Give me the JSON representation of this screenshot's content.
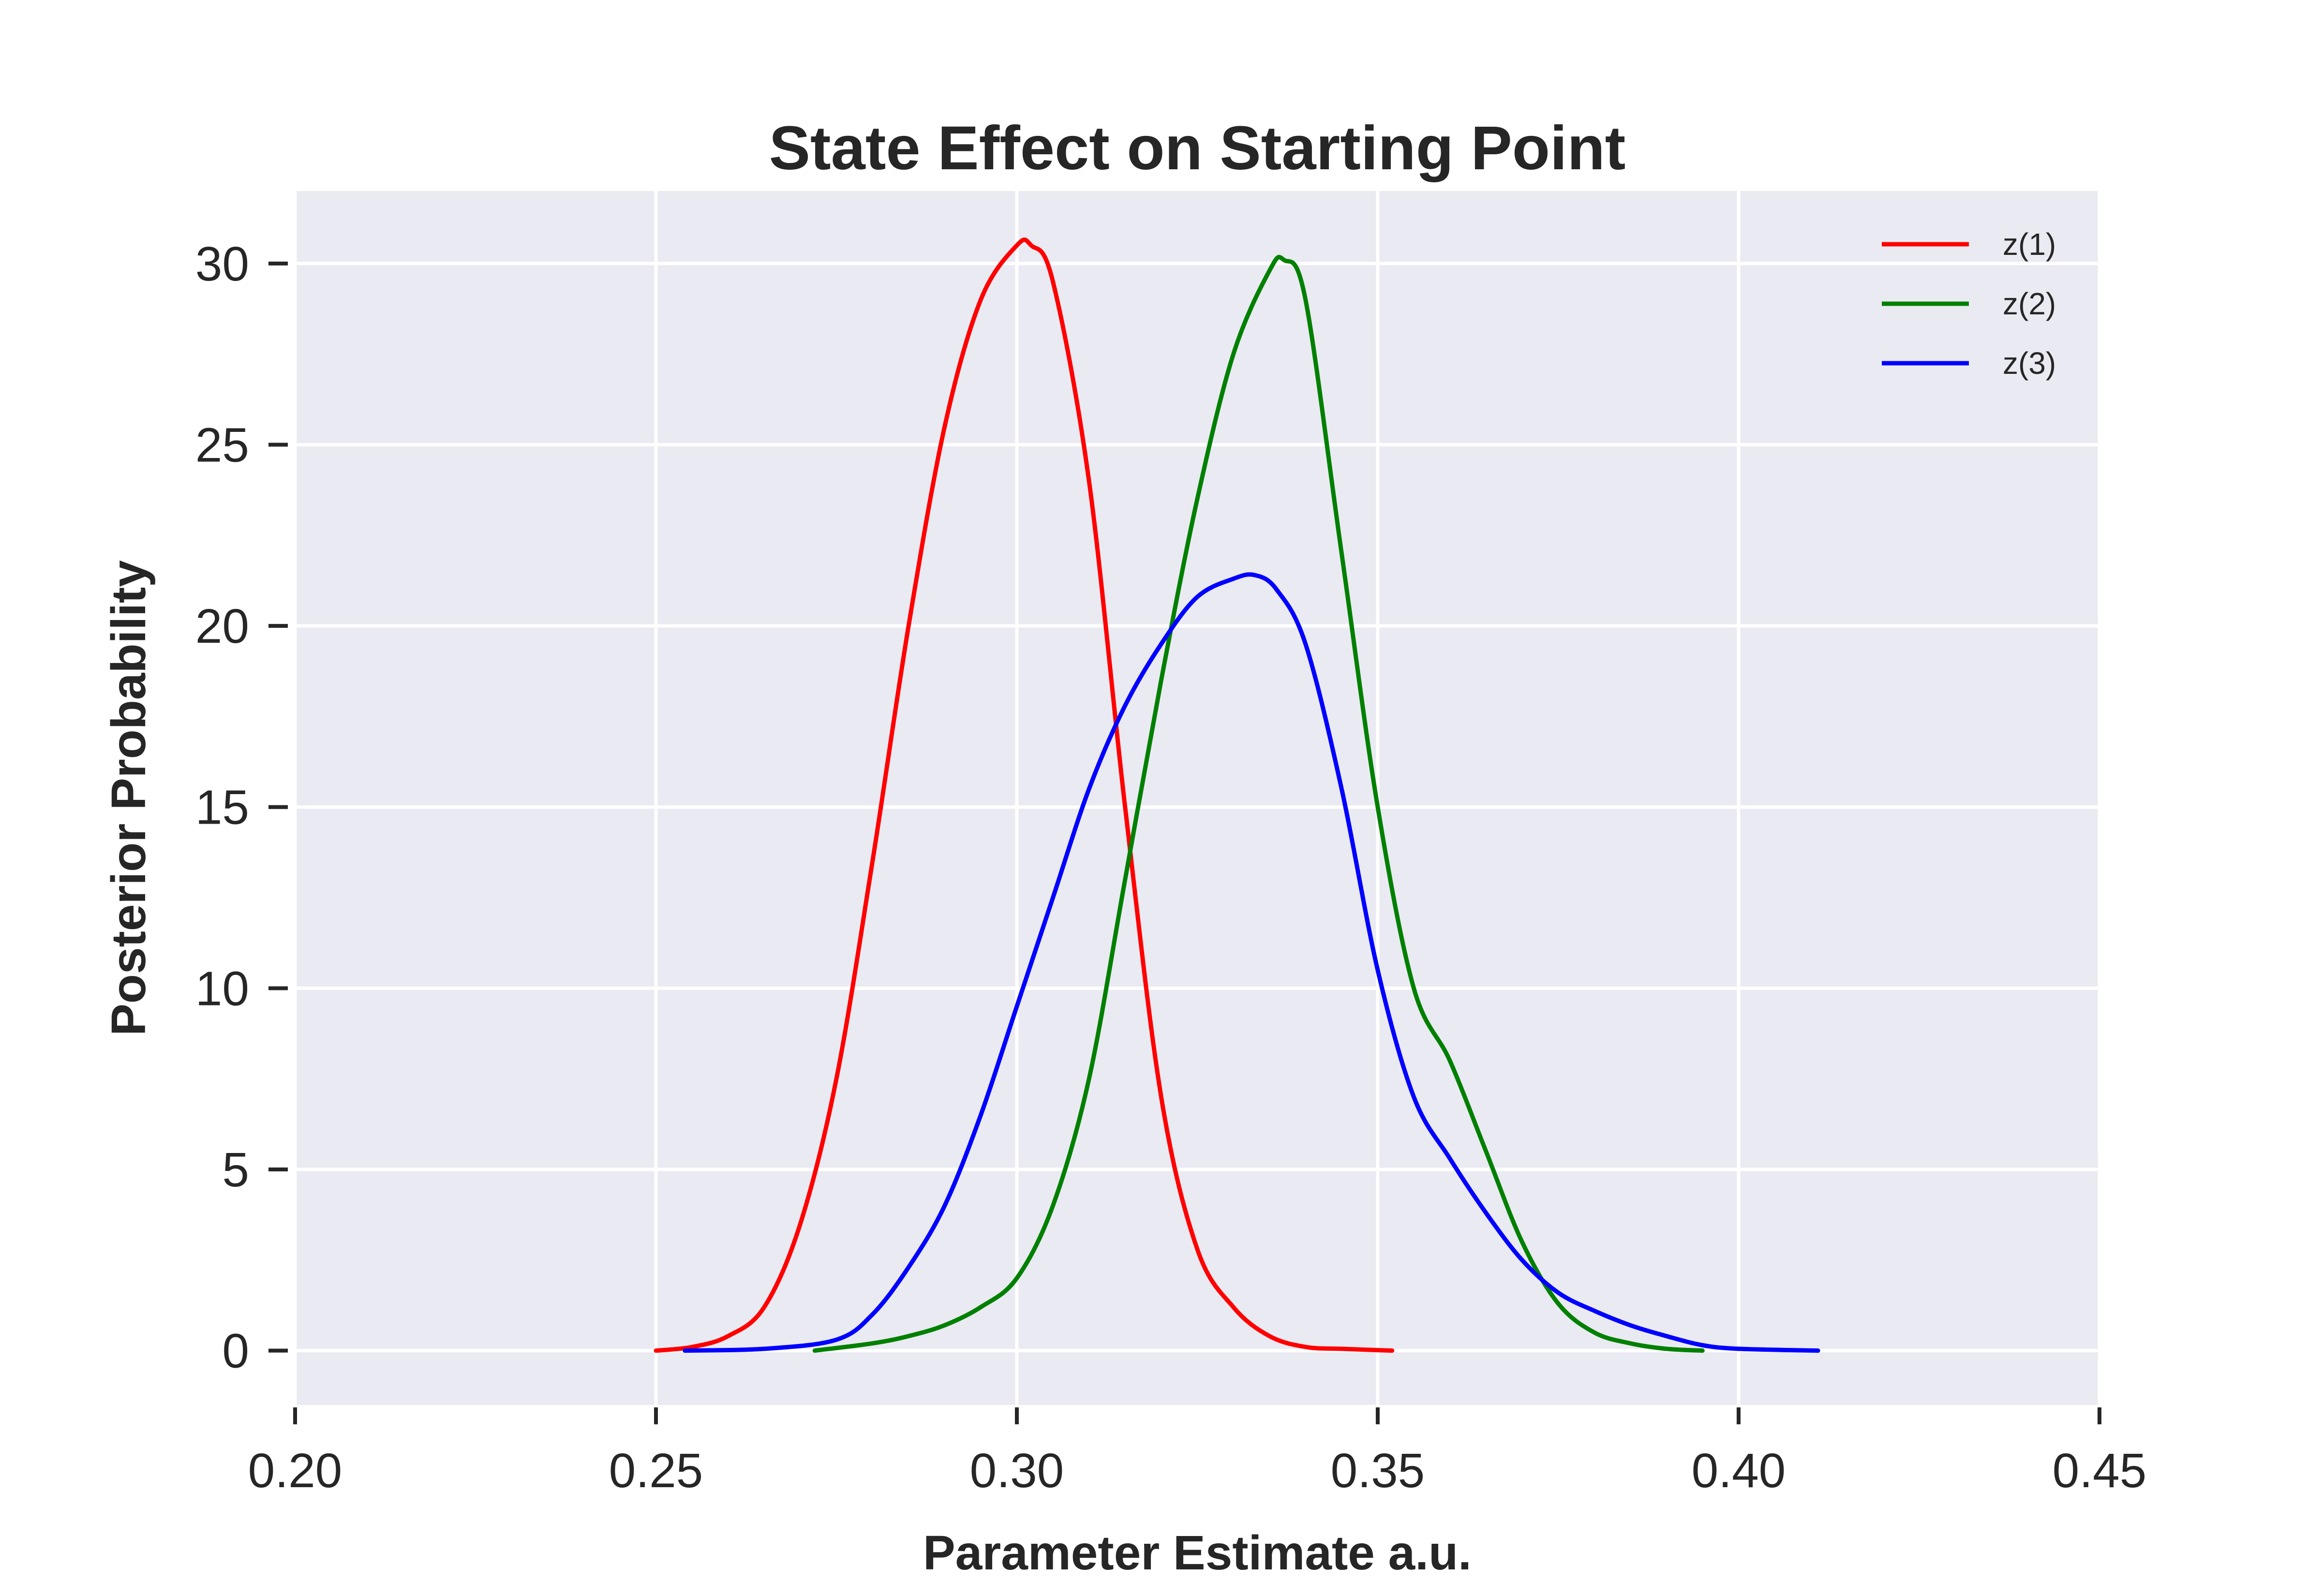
{
  "chart_data": {
    "type": "line",
    "title": "State Effect on Starting Point",
    "xlabel": "Parameter Estimate a.u.",
    "ylabel": "Posterior Probability",
    "xlim": [
      0.2,
      0.45
    ],
    "ylim": [
      -1.5,
      32
    ],
    "xticks": [
      0.2,
      0.25,
      0.3,
      0.35,
      0.4,
      0.45
    ],
    "xtick_labels": [
      "0.20",
      "0.25",
      "0.30",
      "0.35",
      "0.40",
      "0.45"
    ],
    "yticks": [
      0,
      5,
      10,
      15,
      20,
      25,
      30
    ],
    "ytick_labels": [
      "0",
      "5",
      "10",
      "15",
      "20",
      "25",
      "30"
    ],
    "grid": true,
    "legend_position": "top-right",
    "background": "#eaeaf2",
    "series": [
      {
        "name": "z(1)",
        "color": "#ff0000",
        "x": [
          0.25,
          0.255,
          0.26,
          0.265,
          0.27,
          0.275,
          0.28,
          0.285,
          0.29,
          0.295,
          0.3,
          0.302,
          0.305,
          0.31,
          0.315,
          0.32,
          0.325,
          0.33,
          0.335,
          0.34,
          0.345,
          0.352
        ],
        "y": [
          0.0,
          0.1,
          0.4,
          1.2,
          3.5,
          7.5,
          13.5,
          20.0,
          25.5,
          29.0,
          30.5,
          30.5,
          29.5,
          24.0,
          15.0,
          7.0,
          2.8,
          1.2,
          0.4,
          0.1,
          0.05,
          0.0
        ]
      },
      {
        "name": "z(2)",
        "color": "#008000",
        "x": [
          0.272,
          0.28,
          0.285,
          0.29,
          0.295,
          0.3,
          0.305,
          0.31,
          0.315,
          0.32,
          0.325,
          0.33,
          0.335,
          0.337,
          0.34,
          0.345,
          0.35,
          0.355,
          0.36,
          0.365,
          0.37,
          0.375,
          0.38,
          0.385,
          0.39,
          0.395
        ],
        "y": [
          0.0,
          0.2,
          0.4,
          0.7,
          1.2,
          2.0,
          4.0,
          7.5,
          13.0,
          18.5,
          23.5,
          27.5,
          29.8,
          30.1,
          29.0,
          22.0,
          15.0,
          10.0,
          8.0,
          5.5,
          3.0,
          1.3,
          0.5,
          0.2,
          0.05,
          0.0
        ]
      },
      {
        "name": "z(3)",
        "color": "#0000ff",
        "x": [
          0.254,
          0.265,
          0.275,
          0.28,
          0.285,
          0.29,
          0.295,
          0.3,
          0.305,
          0.31,
          0.315,
          0.32,
          0.325,
          0.33,
          0.333,
          0.336,
          0.34,
          0.345,
          0.35,
          0.355,
          0.36,
          0.365,
          0.37,
          0.375,
          0.38,
          0.385,
          0.39,
          0.395,
          0.4,
          0.411
        ],
        "y": [
          0.0,
          0.05,
          0.3,
          1.0,
          2.3,
          4.0,
          6.5,
          9.5,
          12.5,
          15.5,
          17.8,
          19.5,
          20.8,
          21.3,
          21.4,
          21.0,
          19.5,
          15.5,
          10.5,
          7.0,
          5.3,
          3.8,
          2.5,
          1.6,
          1.1,
          0.7,
          0.4,
          0.15,
          0.05,
          0.0
        ]
      }
    ]
  }
}
